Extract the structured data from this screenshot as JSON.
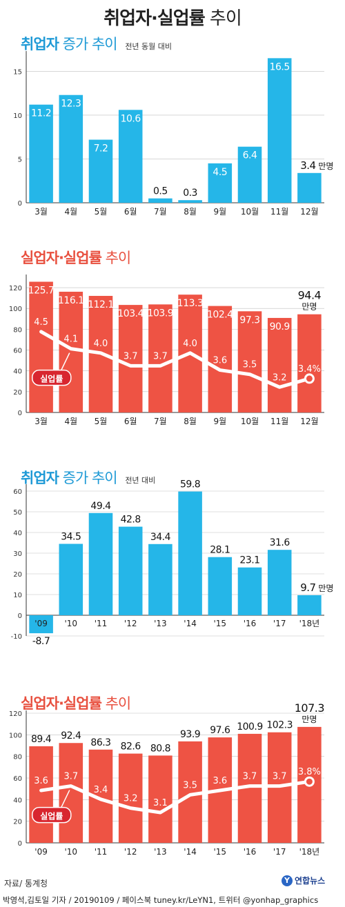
{
  "title": {
    "bold": "취업자·실업률",
    "light": "추이"
  },
  "colors": {
    "blue_bar": "#25b6e8",
    "red_bar": "#ee5344",
    "line": "#ffffff",
    "axis": "#333333",
    "grid": "#bfbfbf"
  },
  "sections": [
    {
      "title_bold": "취업자",
      "title_light": "증가 추이",
      "subtitle": "전년 동월 대비"
    },
    {
      "title_bold": "실업자·실업률",
      "title_light": "추이",
      "subtitle": ""
    },
    {
      "title_bold": "취업자",
      "title_light": "증가 추이",
      "subtitle": "전년 대비"
    },
    {
      "title_bold": "실업자·실업률",
      "title_light": "추이",
      "subtitle": ""
    }
  ],
  "chart_data": [
    {
      "type": "bar",
      "categories": [
        "3월",
        "4월",
        "5월",
        "6월",
        "7월",
        "8월",
        "9월",
        "10월",
        "11월",
        "12월"
      ],
      "values": [
        11.2,
        12.3,
        7.2,
        10.6,
        0.5,
        0.3,
        4.5,
        6.4,
        16.5,
        3.4
      ],
      "value_labels": [
        "11.2",
        "12.3",
        "7.2",
        "10.6",
        "0.5",
        "0.3",
        "4.5",
        "6.4",
        "16.5",
        "3.4"
      ],
      "last_unit": "만명",
      "yticks": [
        "0",
        "5",
        "10",
        "15"
      ],
      "ylim": [
        0,
        17
      ],
      "title": "취업자 증가 추이",
      "subtitle": "전년 동월 대비"
    },
    {
      "type": "bar+line",
      "categories": [
        "3월",
        "4월",
        "5월",
        "6월",
        "7월",
        "8월",
        "9월",
        "10월",
        "11월",
        "12월"
      ],
      "values": [
        125.7,
        116.1,
        112.1,
        103.4,
        103.9,
        113.3,
        102.4,
        97.3,
        90.9,
        94.4
      ],
      "value_labels": [
        "125.7",
        "116.1",
        "112.1",
        "103.4",
        "103.9",
        "113.3",
        "102.4",
        "97.3",
        "90.9",
        "94.4"
      ],
      "last_unit": "만명",
      "rate": [
        4.5,
        4.1,
        4.0,
        3.7,
        3.7,
        4.0,
        3.6,
        3.5,
        3.2,
        3.4
      ],
      "rate_labels": [
        "4.5",
        "4.1",
        "4.0",
        "3.7",
        "3.7",
        "4.0",
        "3.6",
        "3.5",
        "3.2",
        "3.4%"
      ],
      "rate_tag": "실업률",
      "yticks": [
        "0",
        "20",
        "40",
        "60",
        "80",
        "100",
        "120"
      ],
      "ylim": [
        0,
        130
      ],
      "title": "실업자·실업률 추이"
    },
    {
      "type": "bar",
      "categories": [
        "'09",
        "'10",
        "'11",
        "'12",
        "'13",
        "'14",
        "'15",
        "'16",
        "'17",
        "'18년"
      ],
      "values": [
        -8.7,
        34.5,
        49.4,
        42.8,
        34.4,
        59.8,
        28.1,
        23.1,
        31.6,
        9.7
      ],
      "value_labels": [
        "-8.7",
        "34.5",
        "49.4",
        "42.8",
        "34.4",
        "59.8",
        "28.1",
        "23.1",
        "31.6",
        "9.7"
      ],
      "last_unit": "만명",
      "yticks": [
        "-10",
        "0",
        "10",
        "20",
        "30",
        "40",
        "50",
        "60"
      ],
      "ylim": [
        -10,
        62
      ],
      "title": "취업자 증가 추이",
      "subtitle": "전년 대비"
    },
    {
      "type": "bar+line",
      "categories": [
        "'09",
        "'10",
        "'11",
        "'12",
        "'13",
        "'14",
        "'15",
        "'16",
        "'17",
        "'18년"
      ],
      "values": [
        89.4,
        92.4,
        86.3,
        82.6,
        80.8,
        93.9,
        97.6,
        100.9,
        102.3,
        107.3
      ],
      "value_labels": [
        "89.4",
        "92.4",
        "86.3",
        "82.6",
        "80.8",
        "93.9",
        "97.6",
        "100.9",
        "102.3",
        "107.3"
      ],
      "last_unit": "만명",
      "rate": [
        3.6,
        3.7,
        3.4,
        3.2,
        3.1,
        3.5,
        3.6,
        3.7,
        3.7,
        3.8
      ],
      "rate_labels": [
        "3.6",
        "3.7",
        "3.4",
        "3.2",
        "3.1",
        "3.5",
        "3.6",
        "3.7",
        "3.7",
        "3.8%"
      ],
      "rate_tag": "실업률",
      "yticks": [
        "0",
        "20",
        "40",
        "60",
        "80",
        "100",
        "120"
      ],
      "ylim": [
        0,
        120
      ],
      "title": "실업자·실업률 추이"
    }
  ],
  "footer": {
    "source": "자료/ 통계청",
    "credit": "박영석,김토일 기자 / 20190109 / 페이스북 tuney.kr/LeYN1, 트위터 @yonhap_graphics",
    "logo": "연합뉴스"
  }
}
